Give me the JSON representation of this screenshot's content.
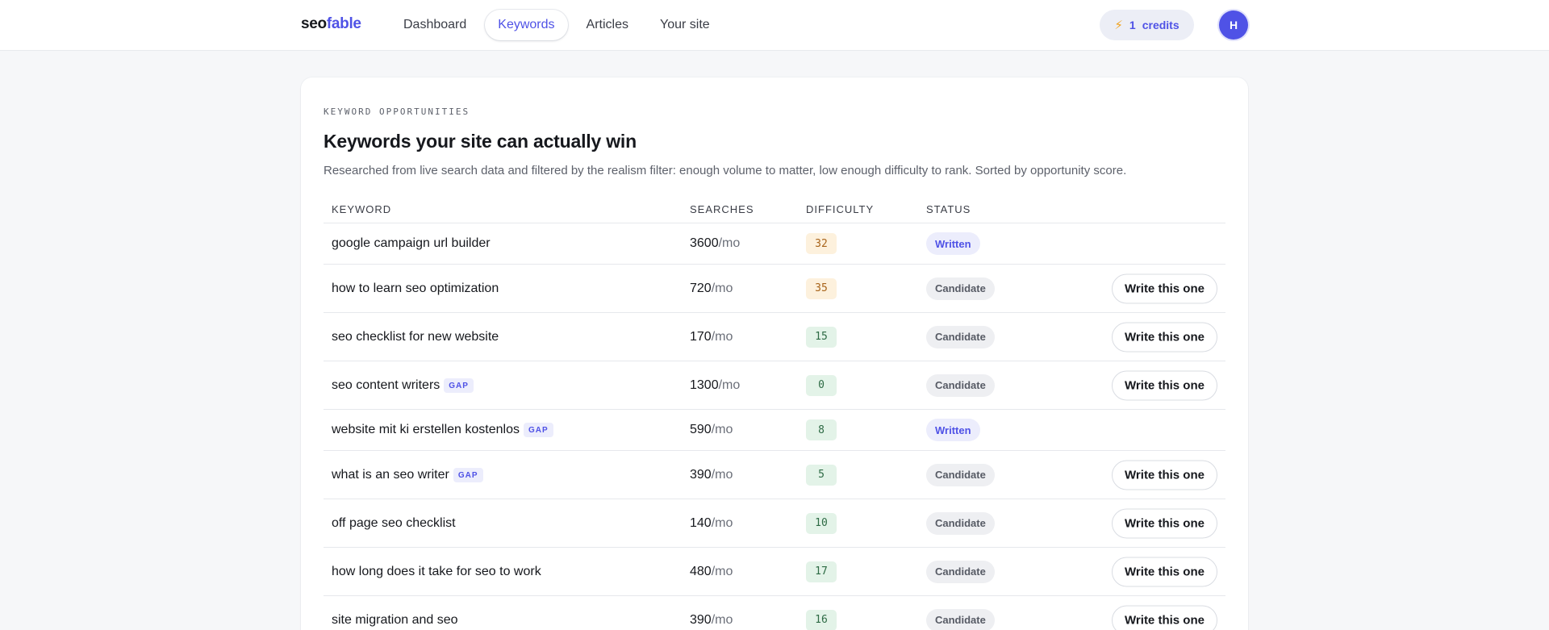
{
  "brand": {
    "part1": "seo",
    "part2": "fable"
  },
  "nav": {
    "tabs": [
      {
        "label": "Dashboard",
        "active": false
      },
      {
        "label": "Keywords",
        "active": true
      },
      {
        "label": "Articles",
        "active": false
      },
      {
        "label": "Your site",
        "active": false
      }
    ]
  },
  "credits": {
    "icon": "lightning-icon",
    "count": "1",
    "label": "credits"
  },
  "user": {
    "avatar_initial": "H"
  },
  "section": {
    "eyebrow": "KEYWORD OPPORTUNITIES",
    "title": "Keywords your site can actually win",
    "subtitle": "Researched from live search data and filtered by the realism filter: enough volume to matter, low enough difficulty to rank. Sorted by opportunity score."
  },
  "table": {
    "headers": {
      "keyword": "KEYWORD",
      "searches": "SEARCHES",
      "difficulty": "DIFFICULTY",
      "status": "STATUS"
    },
    "unit": "/mo",
    "gap_label": "GAP",
    "action_label": "Write this one",
    "rows": [
      {
        "keyword": "google campaign url builder",
        "gap": false,
        "searches": "3600",
        "difficulty": "32",
        "status": "Written"
      },
      {
        "keyword": "how to learn seo optimization",
        "gap": false,
        "searches": "720",
        "difficulty": "35",
        "status": "Candidate"
      },
      {
        "keyword": "seo checklist for new website",
        "gap": false,
        "searches": "170",
        "difficulty": "15",
        "status": "Candidate"
      },
      {
        "keyword": "seo content writers",
        "gap": true,
        "searches": "1300",
        "difficulty": "0",
        "status": "Candidate"
      },
      {
        "keyword": "website mit ki erstellen kostenlos",
        "gap": true,
        "searches": "590",
        "difficulty": "8",
        "status": "Written"
      },
      {
        "keyword": "what is an seo writer",
        "gap": true,
        "searches": "390",
        "difficulty": "5",
        "status": "Candidate"
      },
      {
        "keyword": "off page seo checklist",
        "gap": false,
        "searches": "140",
        "difficulty": "10",
        "status": "Candidate"
      },
      {
        "keyword": "how long does it take for seo to work",
        "gap": false,
        "searches": "480",
        "difficulty": "17",
        "status": "Candidate"
      },
      {
        "keyword": "site migration and seo",
        "gap": false,
        "searches": "390",
        "difficulty": "16",
        "status": "Candidate"
      }
    ]
  },
  "colors": {
    "accent": "#4f52e6",
    "written_bg": "#ecedfc",
    "candidate_bg": "#eeeff2",
    "difficulty_mid_bg": "#fdf1dd",
    "difficulty_low_bg": "#e3f3e8",
    "credits_bolt": "#f0a320"
  }
}
